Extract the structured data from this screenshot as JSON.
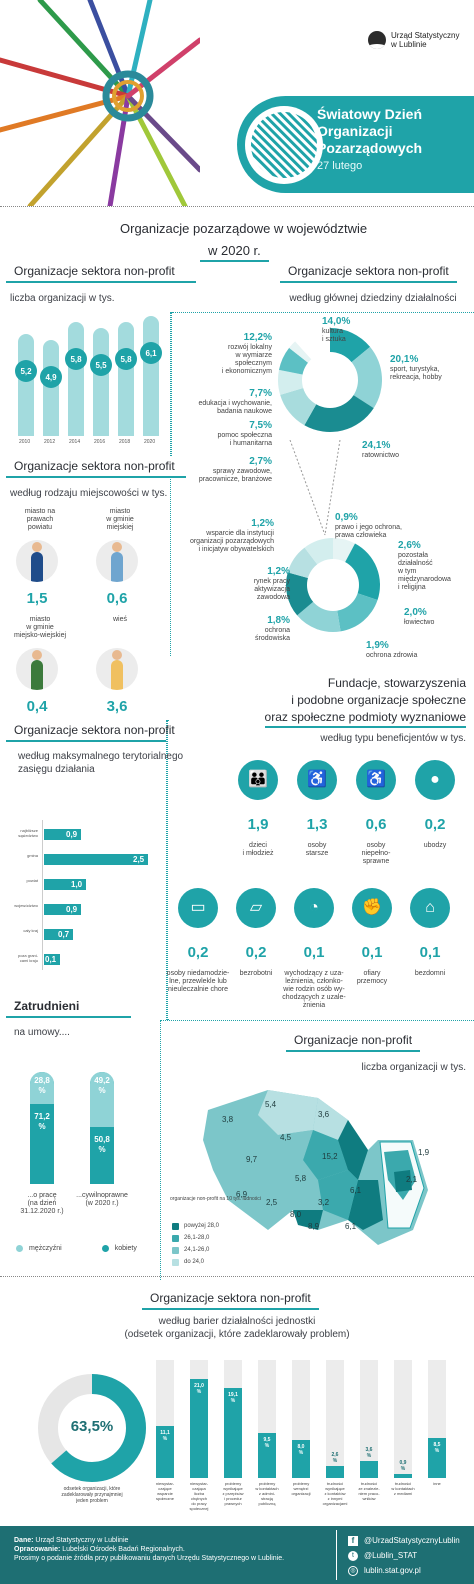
{
  "logo": {
    "line1": "Urząd Statystyczny",
    "line2": "w Lublinie"
  },
  "hero": {
    "title_l1": "Światowy Dzień",
    "title_l2": "Organizacji",
    "title_l3": "Pozarządowych",
    "date": "27 lutego"
  },
  "main_title": {
    "l1": "Organizacje pozarządowe w województwie",
    "l2": "w 2020 r."
  },
  "s1": {
    "title": "Organizacje sektora non-profit",
    "sub": "liczba organizacji w tys.",
    "values": [
      "5,2",
      "4,9",
      "5,8",
      "5,5",
      "5,8",
      "6,1"
    ],
    "years": [
      "2010",
      "2012",
      "2014",
      "2016",
      "2018",
      "2020"
    ],
    "levels": [
      0.85,
      0.8,
      0.95,
      0.9,
      0.95,
      1.0
    ]
  },
  "s2": {
    "title": "Organizacje sektora non-profit",
    "sub": "według głównej dziedziny działalności",
    "items": [
      {
        "pct": "14,0%",
        "label": "kultura\ni sztuka"
      },
      {
        "pct": "20,1%",
        "label": "sport, turystyka,\nrekreacja, hobby"
      },
      {
        "pct": "24,1%",
        "label": "ratownictwo"
      },
      {
        "pct": "12,2%",
        "label": "rozwój lokalny\nw wymiarze\nspołecznym\ni ekonomicznym"
      },
      {
        "pct": "7,7%",
        "label": "edukacja i wychowanie,\nbadania naukowe"
      },
      {
        "pct": "7,5%",
        "label": "pomoc społeczna\ni humanitarna"
      },
      {
        "pct": "2,7%",
        "label": "sprawy zawodowe,\npracownicze, branżowe"
      },
      {
        "pct": "0,9%",
        "label": "prawo i jego ochrona,\nprawa człowieka"
      },
      {
        "pct": "2,6%",
        "label": "pozostała\ndziałalność\nw tym\nmiędzynarodowa\ni religijna"
      },
      {
        "pct": "2,0%",
        "label": "łowiectwo"
      },
      {
        "pct": "1,9%",
        "label": "ochrona zdrowia"
      },
      {
        "pct": "1,8%",
        "label": "ochrona\nśrodowiska"
      },
      {
        "pct": "1,2%",
        "label": "rynek pracy\naktywizacja\nzawodowa"
      },
      {
        "pct": "1,2%",
        "label": "wsparcie dla instytucji\norganizacji pozarządowych\ni inicjatyw obywatelskich"
      }
    ]
  },
  "s3": {
    "title": "Organizacje sektora non-profit",
    "sub": "według rodzaju miejscowości w tys.",
    "items": [
      {
        "label": "miasto na\nprawach\npowiatu",
        "value": "1,5"
      },
      {
        "label": "miasto\nw gminie\nmiejskiej",
        "value": "0,6"
      },
      {
        "label": "miasto\nw gminie\nmiejsko-wiejskiej",
        "value": "0,4"
      },
      {
        "label": "wieś",
        "value": "3,6"
      }
    ]
  },
  "s4": {
    "title_l1": "Fundacje, stowarzyszenia",
    "title_l2": "i podobne organizacje społeczne",
    "title_l3": "oraz społeczne podmioty wyznaniowe",
    "sub": "według typu beneficjentów w tys.",
    "items": [
      {
        "value": "1,9",
        "label": "dzieci\ni młodzież",
        "icon": "children-icon"
      },
      {
        "value": "1,3",
        "label": "osoby\nstarsze",
        "icon": "elderly-icon"
      },
      {
        "value": "0,6",
        "label": "osoby\nniepełno-\nsprawne",
        "icon": "wheelchair-icon"
      },
      {
        "value": "0,2",
        "label": "ubodzy",
        "icon": "person-icon"
      },
      {
        "value": "0,2",
        "label": "osoby niedamodzie-\nlne, przewlekle lub\nnieuleczalnie chore",
        "icon": "hospital-bed-icon"
      },
      {
        "value": "0,2",
        "label": "bezrobotni",
        "icon": "briefcase-icon"
      },
      {
        "value": "0,1",
        "label": "wychodzący z uza-\nleżnienia, członko-\nwie rodzin osób wy-\nchodzących z uzale-\nżnienia",
        "icon": "pill-icon"
      },
      {
        "value": "0,1",
        "label": "ofiary\nprzemocy",
        "icon": "fists-icon"
      },
      {
        "value": "0,1",
        "label": "bezdomni",
        "icon": "house-icon"
      }
    ]
  },
  "s5": {
    "title": "Organizacje sektora non-profit",
    "sub_l1": "według maksymalnego terytorialnego",
    "sub_l2": "zasięgu działania",
    "items": [
      {
        "cat": "najbliższe\nsąsiedztwo",
        "value": "0,9",
        "v": 0.9
      },
      {
        "cat": "gmina",
        "value": "2,5",
        "v": 2.5
      },
      {
        "cat": "powiat",
        "value": "1,0",
        "v": 1.0
      },
      {
        "cat": "województwo",
        "value": "0,9",
        "v": 0.9
      },
      {
        "cat": "cały kraj",
        "value": "0,7",
        "v": 0.7
      },
      {
        "cat": "poza grani-\ncami kraju",
        "value": "0,1",
        "v": 0.1
      }
    ]
  },
  "s6": {
    "title": "Zatrudnieni",
    "sub": "na umowy....",
    "bars": [
      {
        "women": "28,8\n%",
        "men": "71,2\n%",
        "women_v": 28.8,
        "label": "...o pracę\n(na dzień\n31.12.2020 r.)"
      },
      {
        "women": "49,2\n%",
        "men": "50,8\n%",
        "women_v": 49.2,
        "label": "...cywilnoprawne\n(w 2020 r.)"
      }
    ],
    "legend": {
      "men": "mężczyźni",
      "women": "kobiety"
    },
    "colors": {
      "men": "#1fa3a8",
      "women": "#8fd3d6"
    }
  },
  "s7": {
    "title": "Organizacje non-profit",
    "sub": "liczba organizacji w tys.",
    "values": [
      "5,4",
      "3,6",
      "3,8",
      "4,5",
      "9,7",
      "15,2",
      "1,9",
      "2,1",
      "6,1",
      "6,9",
      "5,8",
      "2,5",
      "3,2",
      "8,0",
      "8,9",
      "6,1"
    ],
    "legend_title": "organizacje\nnon-profit\nna 10 tys. ludności",
    "legend": [
      "powyżej 28,0",
      "26,1-28,0",
      "24,1-26,0",
      "do 24,0"
    ],
    "legend_colors": [
      "#0f7c80",
      "#3ba9ad",
      "#7cc6c9",
      "#b7e0e2"
    ]
  },
  "s8": {
    "title": "Organizacje sektora non-profit",
    "sub_l1": "według barier działalności jednostki",
    "sub_l2": "(odsetek organizacji, które zadeklarowały problem)",
    "donut_value": "63,5%",
    "donut_label": "odsetek organizacji, które\nzadeklarowały przynajmniej\njeden problem",
    "bars": [
      {
        "value": "11,1\n%",
        "v": 11.1,
        "label": "niewystar-\nczające\nwsparcie\nspołeczne"
      },
      {
        "value": "21,0\n%",
        "v": 21.0,
        "label": "niewystar-\nczająca\nliczba\nchętnych\ndo pracy\nspołecznej"
      },
      {
        "value": "19,1\n%",
        "v": 19.1,
        "label": "problemy\nwynikające\nz przepisów\ni procedur\nprawnych"
      },
      {
        "value": "9,5\n%",
        "v": 9.5,
        "label": "problemy\nw kontaktach\nz admini-\nstracją\npubliczną"
      },
      {
        "value": "8,0\n%",
        "v": 8.0,
        "label": "problemy\nwenętrzi\norganizacji"
      },
      {
        "value": "2,6\n%",
        "v": 2.6,
        "label": "trudności\nwynikające\nz kontaktów\nz innymi\norganizacjami"
      },
      {
        "value": "3,6\n%",
        "v": 3.6,
        "label": "trudności\nze znalezie-\nniem praco-\nwników"
      },
      {
        "value": "0,9\n%",
        "v": 0.9,
        "label": "trudności\nw kontaktach\nz mediami"
      },
      {
        "value": "8,5\n%",
        "v": 8.5,
        "label": "inne"
      }
    ]
  },
  "footer": {
    "dane_label": "Dane:",
    "dane": "Urząd Statystyczny w Lublinie",
    "opr_label": "Opracowanie:",
    "opr": "Lubelski Ośrodek Badań Regionalnych.",
    "note": "Prosimy o podanie źródła przy publikowaniu danych Urzędu Statystycznego w Lublinie.",
    "fb": "@UrzadStatystycznyLublin",
    "tw": "@Lublin_STAT",
    "web": "lublin.stat.gov.pl"
  },
  "colors": {
    "accent": "#1fa3a8",
    "light": "#a3dbdd",
    "dark": "#1e6f73"
  }
}
